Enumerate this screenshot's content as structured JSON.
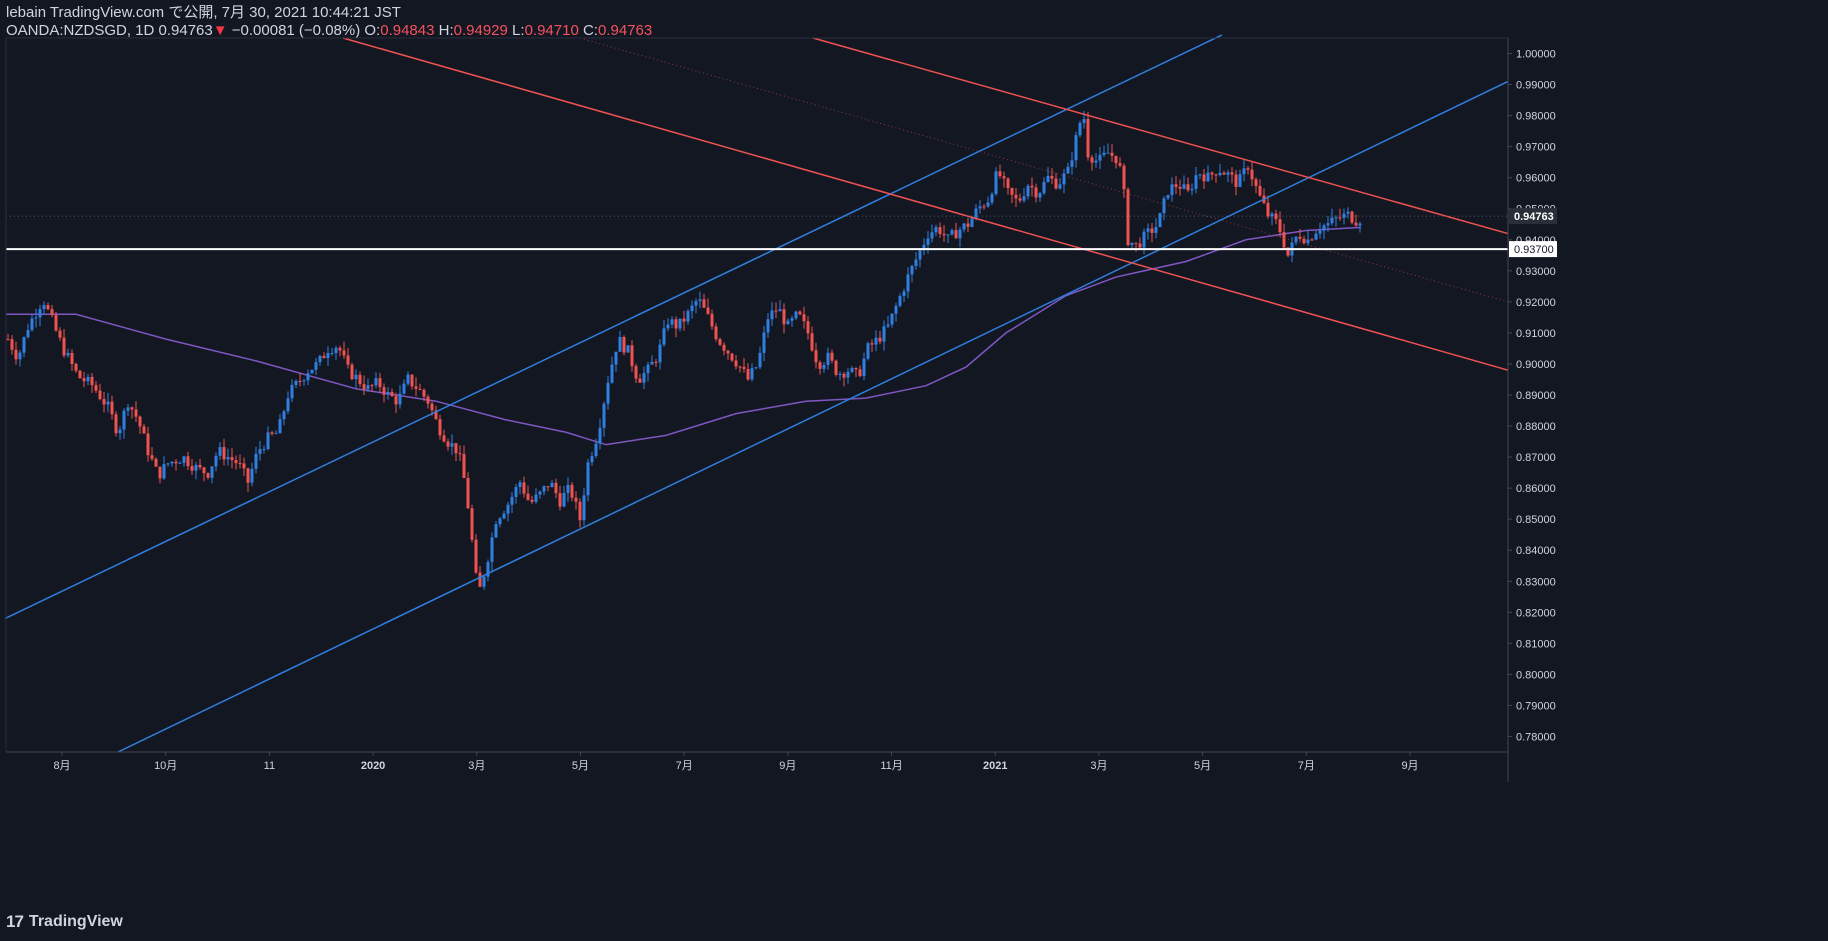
{
  "header": {
    "published_line": "lebain TradingView.com で公開, 7月 30, 2021 10:44:21 JST",
    "symbol_line": "OANDA:NZDSGD, 1D 0.94763",
    "change_arrow": "▼",
    "change_text": "−0.00081 (−0.08%)",
    "o_label": "O:",
    "o_value": "0.94843",
    "h_label": "H:",
    "h_value": "0.94929",
    "l_label": "L:",
    "l_value": "0.94710",
    "c_label": "C:",
    "c_value": "0.94763"
  },
  "footer": {
    "brand": "TradingView",
    "logo_glyph": "17"
  },
  "colors": {
    "background": "#131722",
    "up": "#2962ff",
    "up_candle": "#2f7fe0",
    "down_candle": "#ef5350",
    "trend_blue": "#2f7fe0",
    "trend_red": "#f05252",
    "ma": "#7e57c2",
    "support": "#ffffff",
    "grid": "#2a2e39",
    "axis_text": "#d1d4dc"
  },
  "chart_data": {
    "type": "candlestick",
    "symbol": "OANDA:NZDSGD",
    "interval": "1D",
    "ylim": [
      0.775,
      1.005
    ],
    "y_ticks": [
      "0.78000",
      "0.79000",
      "0.80000",
      "0.81000",
      "0.82000",
      "0.83000",
      "0.84000",
      "0.85000",
      "0.86000",
      "0.87000",
      "0.88000",
      "0.89000",
      "0.90000",
      "0.91000",
      "0.92000",
      "0.93000",
      "0.94000",
      "0.95000",
      "0.96000",
      "0.97000",
      "0.98000",
      "0.99000",
      "1.00000"
    ],
    "x_ticks": [
      "8月",
      "10月",
      "11",
      "2020",
      "3月",
      "5月",
      "7月",
      "9月",
      "11月",
      "2021",
      "3月",
      "5月",
      "7月",
      "9月"
    ],
    "current_price_label": "0.94763",
    "support_label": "0.93700",
    "support_level": 0.937,
    "price_path": [
      [
        0,
        0.908
      ],
      [
        10,
        0.902
      ],
      [
        20,
        0.912
      ],
      [
        35,
        0.921
      ],
      [
        45,
        0.913
      ],
      [
        55,
        0.905
      ],
      [
        70,
        0.896
      ],
      [
        85,
        0.893
      ],
      [
        100,
        0.886
      ],
      [
        110,
        0.878
      ],
      [
        120,
        0.888
      ],
      [
        130,
        0.882
      ],
      [
        140,
        0.872
      ],
      [
        150,
        0.864
      ],
      [
        160,
        0.868
      ],
      [
        175,
        0.87
      ],
      [
        190,
        0.866
      ],
      [
        200,
        0.865
      ],
      [
        210,
        0.872
      ],
      [
        220,
        0.87
      ],
      [
        230,
        0.868
      ],
      [
        240,
        0.862
      ],
      [
        250,
        0.872
      ],
      [
        260,
        0.876
      ],
      [
        270,
        0.878
      ],
      [
        280,
        0.89
      ],
      [
        290,
        0.894
      ],
      [
        300,
        0.898
      ],
      [
        310,
        0.9
      ],
      [
        320,
        0.905
      ],
      [
        330,
        0.906
      ],
      [
        340,
        0.898
      ],
      [
        350,
        0.895
      ],
      [
        360,
        0.892
      ],
      [
        370,
        0.894
      ],
      [
        380,
        0.89
      ],
      [
        390,
        0.888
      ],
      [
        400,
        0.895
      ],
      [
        410,
        0.892
      ],
      [
        420,
        0.888
      ],
      [
        430,
        0.88
      ],
      [
        440,
        0.875
      ],
      [
        450,
        0.872
      ],
      [
        458,
        0.86
      ],
      [
        465,
        0.84
      ],
      [
        470,
        0.825
      ],
      [
        478,
        0.835
      ],
      [
        488,
        0.85
      ],
      [
        500,
        0.855
      ],
      [
        512,
        0.862
      ],
      [
        522,
        0.855
      ],
      [
        532,
        0.858
      ],
      [
        542,
        0.862
      ],
      [
        552,
        0.856
      ],
      [
        562,
        0.86
      ],
      [
        572,
        0.85
      ],
      [
        580,
        0.868
      ],
      [
        590,
        0.878
      ],
      [
        600,
        0.895
      ],
      [
        610,
        0.908
      ],
      [
        620,
        0.904
      ],
      [
        630,
        0.895
      ],
      [
        640,
        0.898
      ],
      [
        650,
        0.903
      ],
      [
        660,
        0.914
      ],
      [
        670,
        0.912
      ],
      [
        680,
        0.916
      ],
      [
        690,
        0.921
      ],
      [
        700,
        0.915
      ],
      [
        710,
        0.908
      ],
      [
        720,
        0.904
      ],
      [
        730,
        0.9
      ],
      [
        740,
        0.895
      ],
      [
        750,
        0.9
      ],
      [
        760,
        0.915
      ],
      [
        770,
        0.918
      ],
      [
        780,
        0.912
      ],
      [
        790,
        0.916
      ],
      [
        800,
        0.91
      ],
      [
        810,
        0.9
      ],
      [
        820,
        0.902
      ],
      [
        830,
        0.897
      ],
      [
        840,
        0.898
      ],
      [
        850,
        0.896
      ],
      [
        860,
        0.905
      ],
      [
        870,
        0.908
      ],
      [
        880,
        0.912
      ],
      [
        890,
        0.92
      ],
      [
        900,
        0.928
      ],
      [
        910,
        0.935
      ],
      [
        920,
        0.942
      ],
      [
        930,
        0.944
      ],
      [
        940,
        0.94
      ],
      [
        950,
        0.943
      ],
      [
        960,
        0.945
      ],
      [
        970,
        0.95
      ],
      [
        980,
        0.953
      ],
      [
        990,
        0.962
      ],
      [
        1000,
        0.955
      ],
      [
        1010,
        0.952
      ],
      [
        1020,
        0.958
      ],
      [
        1030,
        0.955
      ],
      [
        1040,
        0.96
      ],
      [
        1050,
        0.958
      ],
      [
        1060,
        0.962
      ],
      [
        1070,
        0.975
      ],
      [
        1075,
        0.982
      ],
      [
        1080,
        0.968
      ],
      [
        1090,
        0.965
      ],
      [
        1100,
        0.968
      ],
      [
        1110,
        0.966
      ],
      [
        1115,
        0.958
      ],
      [
        1120,
        0.94
      ],
      [
        1128,
        0.938
      ],
      [
        1140,
        0.942
      ],
      [
        1150,
        0.945
      ],
      [
        1160,
        0.956
      ],
      [
        1170,
        0.958
      ],
      [
        1180,
        0.955
      ],
      [
        1190,
        0.962
      ],
      [
        1200,
        0.96
      ],
      [
        1210,
        0.963
      ],
      [
        1220,
        0.961
      ],
      [
        1230,
        0.958
      ],
      [
        1240,
        0.964
      ],
      [
        1250,
        0.955
      ],
      [
        1260,
        0.948
      ],
      [
        1270,
        0.945
      ],
      [
        1280,
        0.935
      ],
      [
        1290,
        0.942
      ],
      [
        1300,
        0.94
      ],
      [
        1310,
        0.944
      ],
      [
        1320,
        0.945
      ],
      [
        1330,
        0.947
      ],
      [
        1340,
        0.948
      ],
      [
        1350,
        0.946
      ],
      [
        1355,
        0.948
      ]
    ],
    "moving_average": [
      [
        0,
        0.916
      ],
      [
        70,
        0.916
      ],
      [
        160,
        0.908
      ],
      [
        250,
        0.901
      ],
      [
        350,
        0.892
      ],
      [
        430,
        0.888
      ],
      [
        500,
        0.882
      ],
      [
        560,
        0.878
      ],
      [
        600,
        0.874
      ],
      [
        660,
        0.877
      ],
      [
        730,
        0.884
      ],
      [
        800,
        0.888
      ],
      [
        860,
        0.889
      ],
      [
        920,
        0.893
      ],
      [
        960,
        0.899
      ],
      [
        1000,
        0.91
      ],
      [
        1060,
        0.922
      ],
      [
        1110,
        0.928
      ],
      [
        1180,
        0.933
      ],
      [
        1240,
        0.94
      ],
      [
        1300,
        0.943
      ],
      [
        1355,
        0.944
      ]
    ],
    "trend_lines": [
      {
        "name": "upper-channel-blue",
        "color": "blue",
        "from": [
          5,
          0.818
        ],
        "to": [
          1222,
          1.006
        ]
      },
      {
        "name": "lower-channel-blue",
        "color": "blue",
        "from": [
          118,
          0.775
        ],
        "to": [
          1508,
          0.991
        ]
      },
      {
        "name": "upper-channel-red",
        "color": "red",
        "from": [
          813,
          1.005
        ],
        "to": [
          1508,
          0.942
        ]
      },
      {
        "name": "lower-channel-red",
        "color": "red",
        "from": [
          343,
          1.005
        ],
        "to": [
          1508,
          0.898
        ]
      },
      {
        "name": "mid-channel-dotted",
        "color": "red-dotted",
        "from": [
          580,
          1.005
        ],
        "to": [
          1508,
          0.92
        ]
      }
    ]
  }
}
